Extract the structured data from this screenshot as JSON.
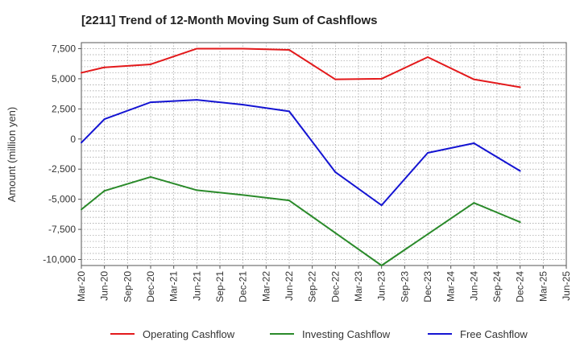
{
  "chart_data": {
    "type": "line",
    "title": "[2211]  Trend of 12-Month Moving Sum of Cashflows",
    "ylabel": "Amount (million yen)",
    "xlabel": "",
    "categories": [
      "Mar-20",
      "Jun-20",
      "Sep-20",
      "Dec-20",
      "Mar-21",
      "Jun-21",
      "Sep-21",
      "Dec-21",
      "Mar-22",
      "Jun-22",
      "Sep-22",
      "Dec-22",
      "Mar-23",
      "Jun-23",
      "Sep-23",
      "Dec-23",
      "Mar-24",
      "Jun-24",
      "Sep-24",
      "Dec-24",
      "Mar-25",
      "Jun-25"
    ],
    "yticks": [
      7500,
      5000,
      2500,
      0,
      -2500,
      -5000,
      -7500,
      -10000
    ],
    "ytick_labels": [
      "7,500",
      "5,000",
      "2,500",
      "0",
      "-2,500",
      "-5,000",
      "-7,500",
      "-10,000"
    ],
    "ylim": [
      -10500,
      8000
    ],
    "grid": true,
    "legend_position": "bottom",
    "series": [
      {
        "name": "Operating Cashflow",
        "color": "#e3191b",
        "values": [
          5500,
          5950,
          null,
          6200,
          null,
          7500,
          null,
          7500,
          null,
          7400,
          null,
          4950,
          null,
          5000,
          null,
          6800,
          null,
          4950,
          null,
          4300,
          null,
          null
        ]
      },
      {
        "name": "Investing Cashflow",
        "color": "#2a8a2a",
        "values": [
          -5850,
          -4300,
          null,
          -3150,
          null,
          -4250,
          null,
          -4650,
          null,
          -5100,
          null,
          -7800,
          null,
          -10500,
          null,
          -7900,
          null,
          -5300,
          null,
          -6900,
          null,
          null
        ]
      },
      {
        "name": "Free Cashflow",
        "color": "#1414d2",
        "values": [
          -300,
          1650,
          null,
          3050,
          null,
          3250,
          null,
          2850,
          null,
          2300,
          null,
          -2750,
          null,
          -5500,
          null,
          -1150,
          null,
          -350,
          null,
          -2650,
          null,
          null
        ]
      }
    ]
  }
}
